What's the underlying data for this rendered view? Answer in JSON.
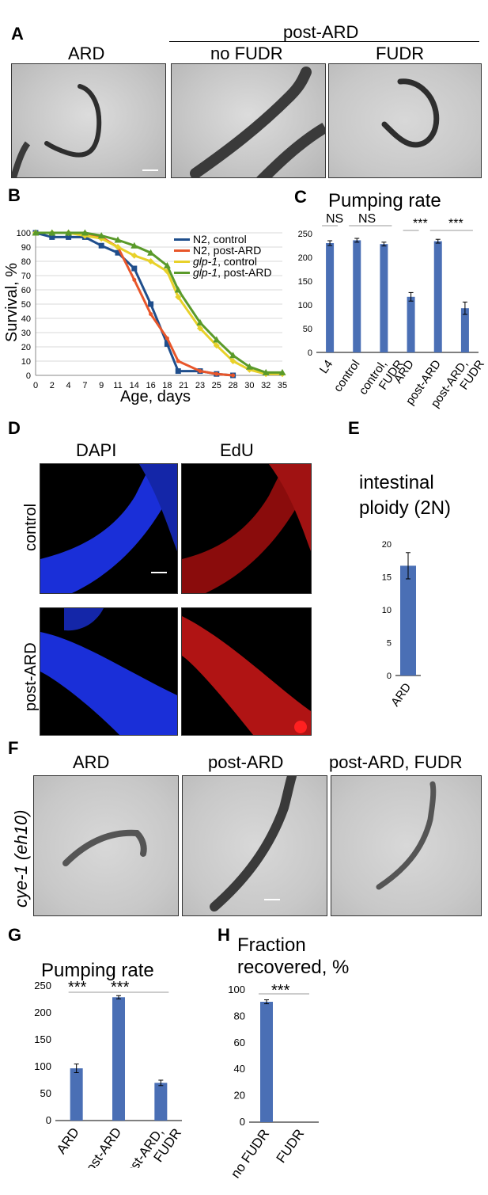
{
  "panelA": {
    "letter": "A",
    "post_ard_header": "post-ARD",
    "labels": [
      "ARD",
      "no FUDR",
      "FUDR"
    ]
  },
  "panelB": {
    "letter": "B",
    "ylabel": "Survival, %",
    "xlabel": "Age, days",
    "legend": [
      {
        "prefix": "N2",
        "suffix": ", control",
        "color": "#1f4e8c"
      },
      {
        "prefix": "N2",
        "suffix": ", post-ARD",
        "color": "#e8562a"
      },
      {
        "prefix": "glp-1",
        "suffix": ", control",
        "color": "#e8d12a"
      },
      {
        "prefix": "glp-1",
        "suffix": ", post-ARD",
        "color": "#5a9a2a"
      }
    ]
  },
  "panelC": {
    "letter": "C",
    "title": "Pumping rate",
    "sig": [
      "NS",
      "NS",
      "***",
      "***"
    ]
  },
  "panelD": {
    "letter": "D",
    "col_labels": [
      "DAPI",
      "EdU"
    ],
    "row_labels": [
      "control",
      "post-ARD"
    ]
  },
  "panelE": {
    "letter": "E",
    "title_line1": "intestinal",
    "title_line2": "ploidy (2N)"
  },
  "panelF": {
    "letter": "F",
    "genotype": "cye-1 (eh10)",
    "labels": [
      "ARD",
      "post-ARD",
      "post-ARD, FUDR"
    ]
  },
  "panelG": {
    "letter": "G",
    "title": "Pumping rate",
    "sig": [
      "***",
      "***"
    ]
  },
  "panelH": {
    "letter": "H",
    "title_line1": "Fraction",
    "title_line2": "recovered, %",
    "sig": "***"
  },
  "chart_data": [
    {
      "id": "B",
      "type": "line",
      "xlabel": "Age, days",
      "ylabel": "Survival, %",
      "x_ticks": [
        0,
        2,
        4,
        7,
        9,
        11,
        14,
        16,
        18,
        21,
        23,
        25,
        28,
        30,
        32,
        35
      ],
      "ylim": [
        0,
        100
      ],
      "y_ticks": [
        0,
        10,
        20,
        30,
        40,
        50,
        60,
        70,
        80,
        90,
        100
      ],
      "series": [
        {
          "name": "N2, control",
          "color": "#1f4e8c",
          "x": [
            0,
            2,
            4,
            7,
            9,
            11,
            14,
            16,
            18,
            20,
            23,
            25,
            28
          ],
          "y": [
            100,
            97,
            97,
            97,
            91,
            86,
            75,
            50,
            22,
            3,
            3,
            1,
            0
          ]
        },
        {
          "name": "N2, post-ARD",
          "color": "#e8562a",
          "x": [
            0,
            2,
            4,
            7,
            9,
            11,
            14,
            16,
            18,
            20,
            23,
            25,
            28
          ],
          "y": [
            100,
            100,
            100,
            100,
            97,
            90,
            67,
            43,
            26,
            10,
            3,
            1,
            0
          ]
        },
        {
          "name": "glp-1, control",
          "color": "#e8d12a",
          "x": [
            0,
            2,
            4,
            7,
            9,
            11,
            14,
            16,
            18,
            20,
            23,
            25,
            28,
            30,
            32,
            35
          ],
          "y": [
            100,
            100,
            100,
            98,
            96,
            90,
            84,
            80,
            73,
            55,
            33,
            21,
            10,
            4,
            1,
            1
          ]
        },
        {
          "name": "glp-1, post-ARD",
          "color": "#5a9a2a",
          "x": [
            0,
            2,
            4,
            7,
            9,
            11,
            14,
            16,
            18,
            20,
            23,
            25,
            28,
            30,
            32,
            35
          ],
          "y": [
            100,
            100,
            100,
            100,
            98,
            95,
            91,
            86,
            77,
            60,
            37,
            25,
            14,
            6,
            2,
            2
          ]
        }
      ]
    },
    {
      "id": "C",
      "type": "bar",
      "title": "Pumping rate",
      "categories": [
        "L4",
        "control",
        "control, FUDR",
        "ARD",
        "post-ARD",
        "post-ARD, FUDR"
      ],
      "values": [
        230,
        236,
        228,
        117,
        234,
        93
      ],
      "errors": [
        5,
        4,
        4,
        9,
        4,
        13
      ],
      "ylim": [
        0,
        250
      ],
      "y_ticks": [
        0,
        50,
        100,
        150,
        200,
        250
      ],
      "color": "#4a6fb5"
    },
    {
      "id": "E",
      "type": "bar",
      "categories": [
        "ARD"
      ],
      "values": [
        16.7
      ],
      "errors": [
        2
      ],
      "ylim": [
        0,
        20
      ],
      "y_ticks": [
        0,
        5,
        10,
        15,
        20
      ],
      "color": "#4a6fb5"
    },
    {
      "id": "G",
      "type": "bar",
      "title": "Pumping rate",
      "categories": [
        "ARD",
        "post-ARD",
        "post-ARD, FUDR"
      ],
      "values": [
        97,
        229,
        70
      ],
      "errors": [
        8,
        3,
        5
      ],
      "ylim": [
        0,
        250
      ],
      "y_ticks": [
        0,
        50,
        100,
        150,
        200,
        250
      ],
      "color": "#4a6fb5"
    },
    {
      "id": "H",
      "type": "bar",
      "categories": [
        "no FUDR",
        "FUDR"
      ],
      "values": [
        91,
        0
      ],
      "errors": [
        1.5,
        0
      ],
      "ylim": [
        0,
        100
      ],
      "y_ticks": [
        0,
        20,
        40,
        60,
        80,
        100
      ],
      "color": "#4a6fb5"
    }
  ]
}
